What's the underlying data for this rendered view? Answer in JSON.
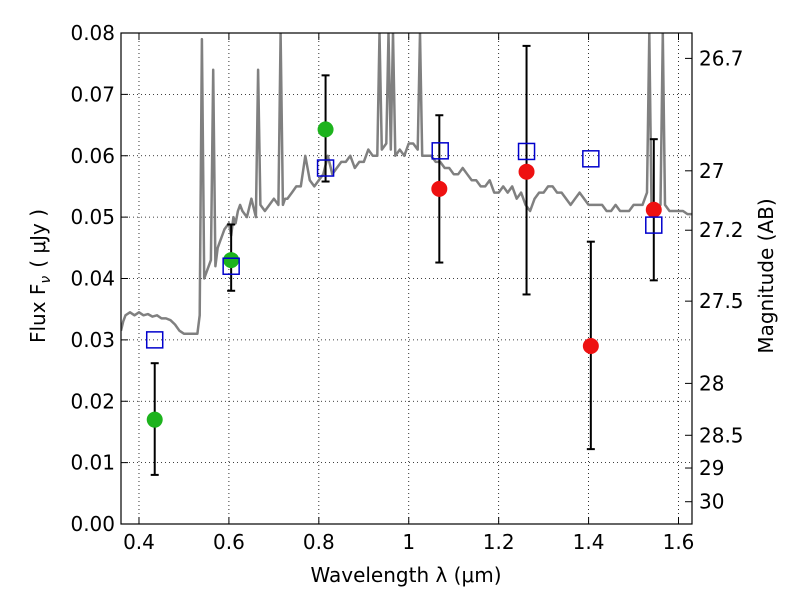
{
  "chart_data": {
    "type": "scatter",
    "xlabel": "Wavelength  λ (μm)",
    "ylabel": "Flux  F",
    "ylabel_sub": "ν",
    "ylabel_unit": "( μJy )",
    "ylabel_right": "Magnitude (AB)",
    "xlim": [
      0.36,
      1.63
    ],
    "ylim": [
      0.0,
      0.08
    ],
    "grid": true,
    "x_ticks": [
      0.4,
      0.6,
      0.8,
      1.0,
      1.2,
      1.4,
      1.6
    ],
    "x_tick_labels": [
      "0.4",
      "0.6",
      "0.8",
      "1",
      "1.2",
      "1.4",
      "1.6"
    ],
    "y_ticks": [
      0.0,
      0.01,
      0.02,
      0.03,
      0.04,
      0.05,
      0.06,
      0.07,
      0.08
    ],
    "y_tick_labels": [
      "0.00",
      "0.01",
      "0.02",
      "0.03",
      "0.04",
      "0.05",
      "0.06",
      "0.07",
      "0.08"
    ],
    "mag_ticks": [
      26.7,
      27,
      27.2,
      27.5,
      28,
      28.5,
      29,
      30
    ],
    "mag_tick_labels": [
      "26.7",
      "27",
      "27.2",
      "27.5",
      "28",
      "28.5",
      "29",
      "30"
    ],
    "colors": {
      "template": "#808080",
      "green": "#1db31d",
      "red": "#ee1111",
      "blue": "#0000cc",
      "errorbar": "#000000"
    },
    "series": [
      {
        "name": "Template spectrum",
        "type": "line",
        "x": [
          0.36,
          0.365,
          0.37,
          0.38,
          0.39,
          0.4,
          0.41,
          0.42,
          0.43,
          0.44,
          0.45,
          0.46,
          0.47,
          0.48,
          0.49,
          0.5,
          0.51,
          0.52,
          0.53,
          0.535,
          0.54,
          0.545,
          0.55,
          0.56,
          0.565,
          0.57,
          0.575,
          0.58,
          0.585,
          0.59,
          0.6,
          0.605,
          0.61,
          0.615,
          0.62,
          0.625,
          0.63,
          0.64,
          0.65,
          0.66,
          0.665,
          0.67,
          0.68,
          0.69,
          0.7,
          0.71,
          0.715,
          0.72,
          0.725,
          0.73,
          0.74,
          0.75,
          0.76,
          0.77,
          0.78,
          0.79,
          0.8,
          0.81,
          0.82,
          0.83,
          0.84,
          0.85,
          0.86,
          0.87,
          0.88,
          0.89,
          0.9,
          0.91,
          0.92,
          0.93,
          0.935,
          0.94,
          0.95,
          0.955,
          0.96,
          0.965,
          0.97,
          0.98,
          0.99,
          1.0,
          1.01,
          1.02,
          1.025,
          1.03,
          1.04,
          1.05,
          1.06,
          1.07,
          1.08,
          1.09,
          1.1,
          1.11,
          1.12,
          1.13,
          1.14,
          1.15,
          1.16,
          1.17,
          1.18,
          1.19,
          1.2,
          1.21,
          1.22,
          1.23,
          1.24,
          1.25,
          1.26,
          1.27,
          1.28,
          1.29,
          1.3,
          1.31,
          1.32,
          1.33,
          1.34,
          1.35,
          1.36,
          1.37,
          1.38,
          1.39,
          1.4,
          1.41,
          1.42,
          1.43,
          1.44,
          1.45,
          1.46,
          1.47,
          1.48,
          1.49,
          1.5,
          1.51,
          1.52,
          1.53,
          1.535,
          1.54,
          1.55,
          1.56,
          1.565,
          1.57,
          1.58,
          1.59,
          1.6,
          1.61,
          1.62,
          1.63
        ],
        "y": [
          0.0315,
          0.033,
          0.034,
          0.0345,
          0.034,
          0.0345,
          0.034,
          0.0342,
          0.0338,
          0.034,
          0.0335,
          0.0335,
          0.0332,
          0.0325,
          0.0315,
          0.031,
          0.031,
          0.031,
          0.031,
          0.034,
          0.079,
          0.04,
          0.041,
          0.043,
          0.074,
          0.042,
          0.045,
          0.046,
          0.047,
          0.048,
          0.049,
          0.047,
          0.05,
          0.049,
          0.051,
          0.052,
          0.051,
          0.05,
          0.053,
          0.05,
          0.074,
          0.052,
          0.051,
          0.052,
          0.053,
          0.052,
          0.08,
          0.052,
          0.053,
          0.053,
          0.054,
          0.055,
          0.055,
          0.06,
          0.056,
          0.055,
          0.056,
          0.057,
          0.06,
          0.057,
          0.058,
          0.059,
          0.059,
          0.06,
          0.058,
          0.059,
          0.059,
          0.061,
          0.06,
          0.06,
          0.08,
          0.061,
          0.062,
          0.08,
          0.061,
          0.08,
          0.06,
          0.061,
          0.06,
          0.062,
          0.062,
          0.061,
          0.08,
          0.06,
          0.06,
          0.06,
          0.059,
          0.059,
          0.058,
          0.058,
          0.057,
          0.057,
          0.058,
          0.057,
          0.056,
          0.056,
          0.055,
          0.055,
          0.056,
          0.054,
          0.054,
          0.055,
          0.054,
          0.055,
          0.053,
          0.054,
          0.052,
          0.051,
          0.053,
          0.054,
          0.054,
          0.055,
          0.055,
          0.054,
          0.054,
          0.053,
          0.052,
          0.053,
          0.054,
          0.053,
          0.052,
          0.052,
          0.052,
          0.052,
          0.051,
          0.051,
          0.052,
          0.051,
          0.051,
          0.051,
          0.052,
          0.052,
          0.052,
          0.054,
          0.08,
          0.052,
          0.051,
          0.052,
          0.08,
          0.052,
          0.051,
          0.051,
          0.051,
          0.051,
          0.0505,
          0.0505
        ]
      },
      {
        "name": "Green points",
        "type": "scatter",
        "marker": "circle",
        "x": [
          0.435,
          0.605,
          0.815
        ],
        "y": [
          0.017,
          0.043,
          0.0643
        ],
        "yerr_low": [
          0.008,
          0.038,
          0.0558
        ],
        "yerr_high": [
          0.0262,
          0.0488,
          0.0731
        ]
      },
      {
        "name": "Red points",
        "type": "scatter",
        "marker": "circle",
        "x": [
          1.068,
          1.262,
          1.405,
          1.545
        ],
        "y": [
          0.0546,
          0.0574,
          0.029,
          0.0512
        ],
        "yerr_low": [
          0.0426,
          0.0374,
          0.0122,
          0.0397
        ],
        "yerr_high": [
          0.0666,
          0.0779,
          0.046,
          0.0627
        ]
      },
      {
        "name": "Blue squares",
        "type": "scatter",
        "marker": "square-open",
        "x": [
          0.435,
          0.605,
          0.815,
          1.07,
          1.262,
          1.405,
          1.545
        ],
        "y": [
          0.03,
          0.042,
          0.058,
          0.0608,
          0.0607,
          0.0595,
          0.0487
        ]
      }
    ]
  }
}
